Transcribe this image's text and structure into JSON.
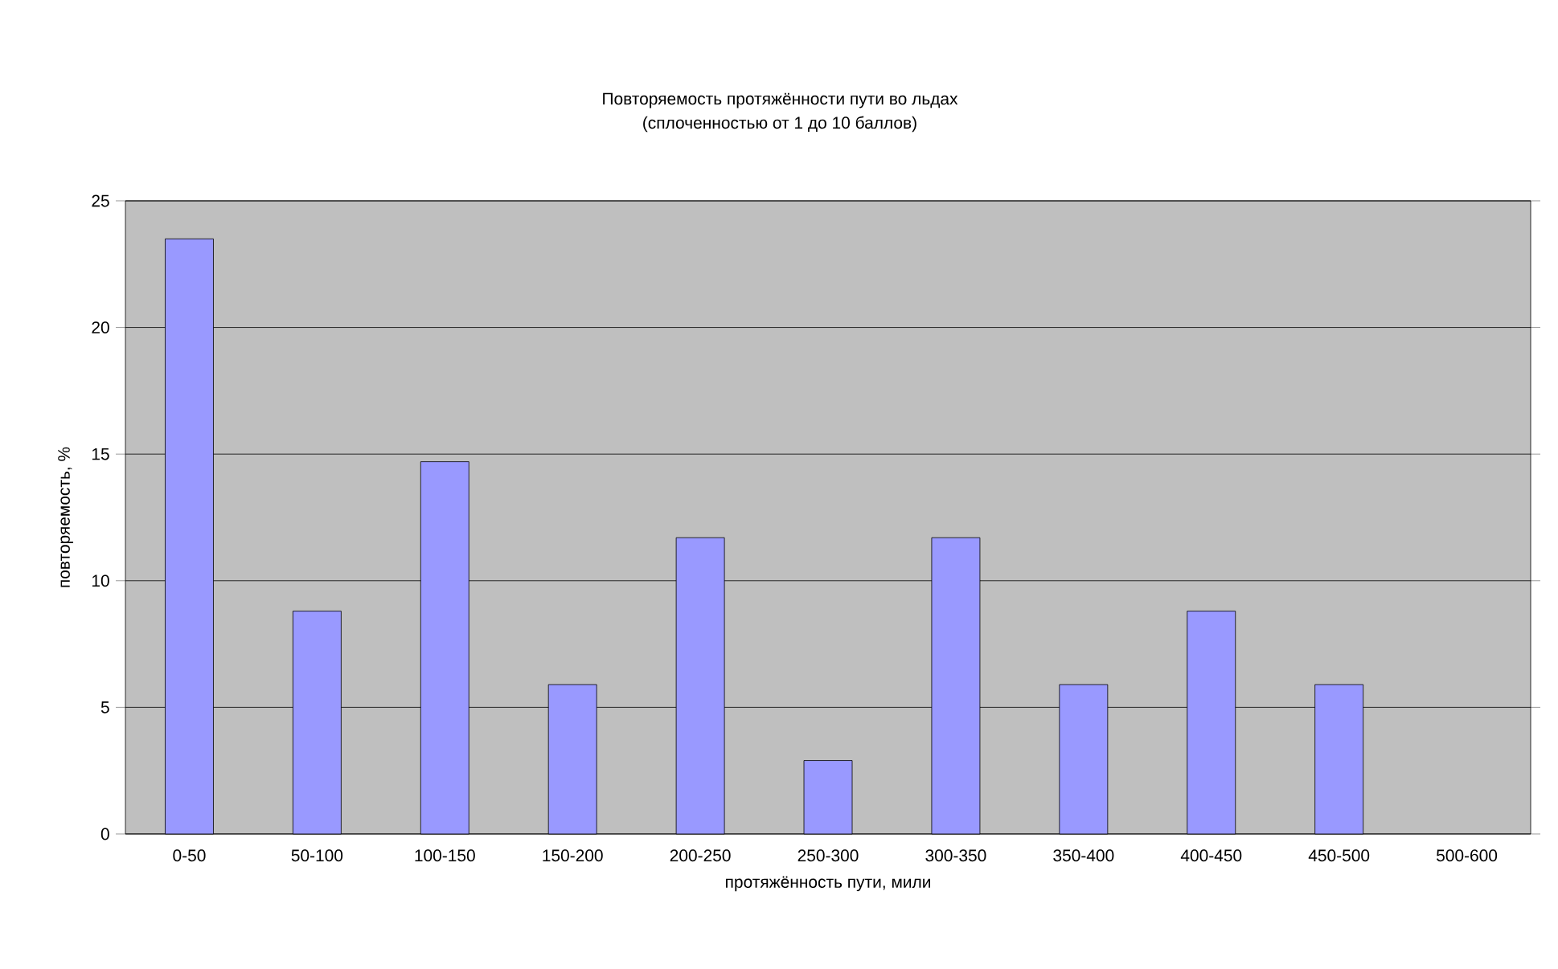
{
  "chart_data": {
    "type": "bar",
    "title": "Повторяемость протяжённости пути во льдах",
    "subtitle": "(сплоченностью от 1 до 10 баллов)",
    "xlabel": "протяжённость пути, мили",
    "ylabel": "повторяемость, %",
    "categories": [
      "0-50",
      "50-100",
      "100-150",
      "150-200",
      "200-250",
      "250-300",
      "300-350",
      "350-400",
      "400-450",
      "450-500",
      "500-600"
    ],
    "values": [
      23.5,
      8.8,
      14.7,
      5.9,
      11.7,
      2.9,
      11.7,
      5.9,
      8.8,
      5.9,
      0
    ],
    "color": "#9999ff",
    "ylim": [
      0,
      25
    ],
    "yticks": [
      0,
      5,
      10,
      15,
      20,
      25
    ],
    "grid": "y"
  }
}
